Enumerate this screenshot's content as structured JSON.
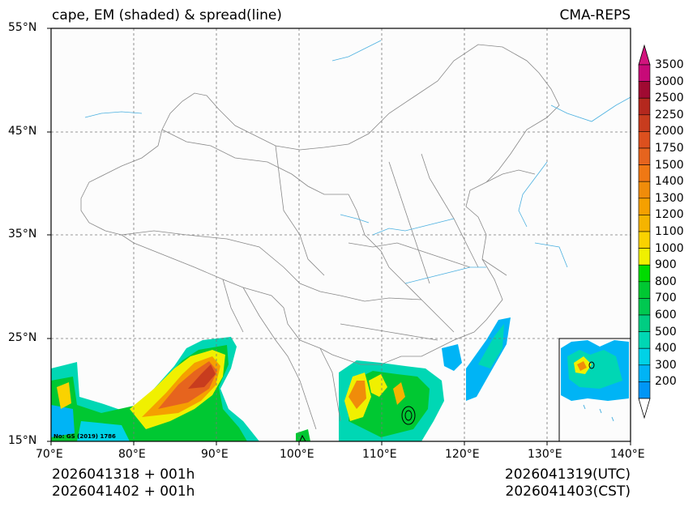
{
  "header": {
    "left_title": "cape, EM (shaded) & spread(line)",
    "right_title": "CMA-REPS"
  },
  "axes": {
    "lon_ticks": [
      "70°E",
      "80°E",
      "90°E",
      "100°E",
      "110°E",
      "120°E",
      "130°E",
      "140°E"
    ],
    "lat_ticks": [
      "55°N",
      "45°N",
      "35°N",
      "25°N",
      "15°N"
    ]
  },
  "map": {
    "extent": {
      "lon_min": 70,
      "lon_max": 140,
      "lat_min": 15,
      "lat_max": 55
    },
    "watermark": "No: GS (2019) 1786"
  },
  "colorbar": {
    "levels": [
      "3500",
      "3000",
      "2500",
      "2250",
      "2000",
      "1750",
      "1500",
      "1400",
      "1300",
      "1200",
      "1100",
      "1000",
      "900",
      "800",
      "700",
      "600",
      "500",
      "400",
      "300",
      "200"
    ],
    "colors": [
      "#c80a78",
      "#a00a32",
      "#b4281e",
      "#c83c1e",
      "#dc501e",
      "#e6641e",
      "#f07814",
      "#f08c0a",
      "#f5a000",
      "#f5b400",
      "#fad200",
      "#f0f000",
      "#00dc00",
      "#00c832",
      "#00c850",
      "#00cd82",
      "#00d7b4",
      "#00d2e6",
      "#00b4f5",
      "#0096f5"
    ],
    "over_color": "#d2147d"
  },
  "footer": {
    "init_utc": "2026041318  +  001h",
    "init_cst": "2026041402  +  001h",
    "valid_utc": "2026041319(UTC)",
    "valid_cst": "2026041403(CST)"
  },
  "colors": {
    "land_bg": "#fcfcfc",
    "grid": "#777777",
    "boundary": "#888888",
    "river": "#4ab0e0",
    "spread_line": "#000000"
  }
}
